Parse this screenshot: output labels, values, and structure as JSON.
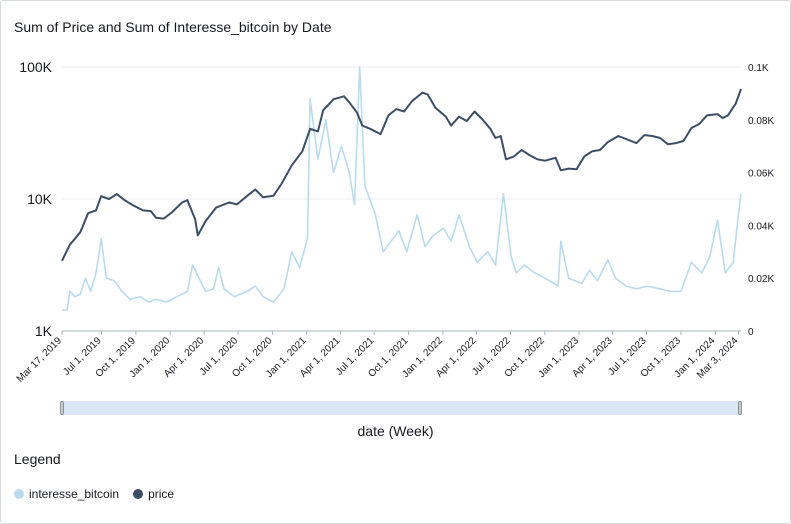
{
  "title": "Sum of Price and Sum of Interesse_bitcoin by Date",
  "xaxis_title": "date (Week)",
  "legend": {
    "title": "Legend",
    "items": [
      {
        "label": "interesse_bitcoin",
        "color": "#b9dbee"
      },
      {
        "label": "price",
        "color": "#3b4e66"
      }
    ]
  },
  "chart_data": {
    "type": "line",
    "x_range": [
      "2019-03-17",
      "2024-03-10"
    ],
    "x_ticks": [
      "Mar 17, 2019",
      "Jul 1, 2019",
      "Oct 1, 2019",
      "Jan 1, 2020",
      "Apr 1, 2020",
      "Jul 1, 2020",
      "Oct 1, 2020",
      "Jan 1, 2021",
      "Apr 1, 2021",
      "Jul 1, 2021",
      "Oct 1, 2021",
      "Jan 1, 2022",
      "Apr 1, 2022",
      "Jul 1, 2022",
      "Oct 1, 2022",
      "Jan 1, 2023",
      "Apr 1, 2023",
      "Jul 1, 2023",
      "Oct 1, 2023",
      "Jan 1, 2024",
      "Mar 3, 2024"
    ],
    "y_left": {
      "scale": "log",
      "range": [
        1000,
        100000
      ],
      "ticks": [
        "1K",
        "10K",
        "100K"
      ]
    },
    "y_right": {
      "scale": "linear",
      "range": [
        0,
        100
      ],
      "ticks": [
        "0",
        "0.02K",
        "0.04K",
        "0.06K",
        "0.08K",
        "0.1K"
      ]
    },
    "grid": true,
    "legend_position": "bottom-left",
    "series": [
      {
        "name": "price",
        "axis": "left",
        "color": "#3b4e66",
        "points": [
          [
            "2019-03-17",
            3400
          ],
          [
            "2019-04-07",
            4500
          ],
          [
            "2019-05-05",
            5600
          ],
          [
            "2019-05-26",
            7800
          ],
          [
            "2019-06-16",
            8200
          ],
          [
            "2019-06-30",
            10500
          ],
          [
            "2019-07-21",
            10000
          ],
          [
            "2019-08-11",
            10900
          ],
          [
            "2019-09-01",
            9800
          ],
          [
            "2019-09-22",
            9000
          ],
          [
            "2019-10-20",
            8200
          ],
          [
            "2019-11-10",
            8100
          ],
          [
            "2019-11-24",
            7200
          ],
          [
            "2019-12-15",
            7100
          ],
          [
            "2020-01-05",
            7900
          ],
          [
            "2020-02-02",
            9400
          ],
          [
            "2020-02-16",
            9800
          ],
          [
            "2020-03-08",
            7000
          ],
          [
            "2020-03-15",
            5300
          ],
          [
            "2020-04-05",
            6800
          ],
          [
            "2020-05-03",
            8600
          ],
          [
            "2020-06-07",
            9400
          ],
          [
            "2020-06-28",
            9100
          ],
          [
            "2020-07-26",
            10600
          ],
          [
            "2020-08-16",
            11800
          ],
          [
            "2020-09-06",
            10300
          ],
          [
            "2020-10-04",
            10600
          ],
          [
            "2020-10-25",
            13000
          ],
          [
            "2020-11-22",
            18000
          ],
          [
            "2020-12-20",
            23000
          ],
          [
            "2021-01-10",
            34000
          ],
          [
            "2021-01-31",
            32500
          ],
          [
            "2021-02-14",
            47000
          ],
          [
            "2021-03-14",
            57000
          ],
          [
            "2021-04-11",
            60000
          ],
          [
            "2021-04-25",
            54000
          ],
          [
            "2021-05-16",
            45000
          ],
          [
            "2021-05-30",
            36000
          ],
          [
            "2021-06-20",
            34000
          ],
          [
            "2021-07-18",
            31000
          ],
          [
            "2021-08-08",
            43000
          ],
          [
            "2021-08-29",
            48000
          ],
          [
            "2021-09-19",
            46000
          ],
          [
            "2021-10-10",
            55000
          ],
          [
            "2021-11-07",
            64000
          ],
          [
            "2021-11-21",
            62000
          ],
          [
            "2021-12-12",
            49000
          ],
          [
            "2022-01-09",
            42000
          ],
          [
            "2022-01-23",
            36000
          ],
          [
            "2022-02-13",
            42000
          ],
          [
            "2022-03-06",
            39000
          ],
          [
            "2022-03-27",
            46000
          ],
          [
            "2022-04-17",
            40000
          ],
          [
            "2022-05-08",
            34000
          ],
          [
            "2022-05-22",
            29000
          ],
          [
            "2022-06-05",
            30000
          ],
          [
            "2022-06-19",
            20000
          ],
          [
            "2022-07-10",
            21000
          ],
          [
            "2022-07-31",
            23500
          ],
          [
            "2022-08-21",
            21500
          ],
          [
            "2022-09-11",
            20000
          ],
          [
            "2022-10-02",
            19500
          ],
          [
            "2022-10-30",
            20500
          ],
          [
            "2022-11-13",
            16500
          ],
          [
            "2022-12-04",
            17000
          ],
          [
            "2022-12-25",
            16800
          ],
          [
            "2023-01-15",
            21000
          ],
          [
            "2023-02-05",
            23000
          ],
          [
            "2023-02-26",
            23500
          ],
          [
            "2023-03-19",
            27000
          ],
          [
            "2023-04-16",
            30000
          ],
          [
            "2023-05-07",
            28500
          ],
          [
            "2023-06-04",
            26500
          ],
          [
            "2023-06-25",
            30500
          ],
          [
            "2023-07-16",
            30000
          ],
          [
            "2023-08-06",
            29000
          ],
          [
            "2023-08-27",
            26000
          ],
          [
            "2023-09-17",
            26500
          ],
          [
            "2023-10-08",
            27500
          ],
          [
            "2023-10-29",
            34500
          ],
          [
            "2023-11-19",
            37000
          ],
          [
            "2023-12-10",
            43000
          ],
          [
            "2024-01-07",
            44000
          ],
          [
            "2024-01-21",
            41000
          ],
          [
            "2024-02-04",
            43000
          ],
          [
            "2024-02-25",
            53000
          ],
          [
            "2024-03-10",
            68000
          ]
        ]
      },
      {
        "name": "interesse_bitcoin",
        "axis": "right",
        "color": "#b9dbee",
        "points": [
          [
            "2019-03-17",
            8
          ],
          [
            "2019-03-31",
            8
          ],
          [
            "2019-04-07",
            15
          ],
          [
            "2019-04-21",
            13
          ],
          [
            "2019-05-05",
            14
          ],
          [
            "2019-05-19",
            20
          ],
          [
            "2019-06-02",
            15
          ],
          [
            "2019-06-16",
            22
          ],
          [
            "2019-06-30",
            35
          ],
          [
            "2019-07-14",
            20
          ],
          [
            "2019-08-04",
            19
          ],
          [
            "2019-08-25",
            15
          ],
          [
            "2019-09-15",
            12
          ],
          [
            "2019-10-13",
            13
          ],
          [
            "2019-11-03",
            11
          ],
          [
            "2019-11-24",
            12
          ],
          [
            "2019-12-22",
            11
          ],
          [
            "2020-01-19",
            13
          ],
          [
            "2020-02-16",
            15
          ],
          [
            "2020-03-01",
            25
          ],
          [
            "2020-03-15",
            21
          ],
          [
            "2020-04-05",
            15
          ],
          [
            "2020-04-26",
            16
          ],
          [
            "2020-05-10",
            24
          ],
          [
            "2020-05-24",
            16
          ],
          [
            "2020-06-21",
            13
          ],
          [
            "2020-07-26",
            15
          ],
          [
            "2020-08-16",
            17
          ],
          [
            "2020-09-06",
            13
          ],
          [
            "2020-10-04",
            11
          ],
          [
            "2020-11-01",
            16
          ],
          [
            "2020-11-22",
            30
          ],
          [
            "2020-12-13",
            24
          ],
          [
            "2021-01-03",
            35
          ],
          [
            "2021-01-10",
            88
          ],
          [
            "2021-01-31",
            65
          ],
          [
            "2021-02-21",
            80
          ],
          [
            "2021-03-14",
            60
          ],
          [
            "2021-04-04",
            70
          ],
          [
            "2021-04-25",
            60
          ],
          [
            "2021-05-09",
            48
          ],
          [
            "2021-05-23",
            100
          ],
          [
            "2021-06-06",
            55
          ],
          [
            "2021-07-04",
            44
          ],
          [
            "2021-07-25",
            30
          ],
          [
            "2021-08-15",
            34
          ],
          [
            "2021-09-05",
            38
          ],
          [
            "2021-09-26",
            30
          ],
          [
            "2021-10-24",
            44
          ],
          [
            "2021-11-14",
            32
          ],
          [
            "2021-12-05",
            36
          ],
          [
            "2022-01-02",
            39
          ],
          [
            "2022-01-23",
            34
          ],
          [
            "2022-02-13",
            44
          ],
          [
            "2022-03-13",
            32
          ],
          [
            "2022-04-03",
            26
          ],
          [
            "2022-05-01",
            30
          ],
          [
            "2022-05-22",
            25
          ],
          [
            "2022-06-12",
            52
          ],
          [
            "2022-07-03",
            28
          ],
          [
            "2022-07-17",
            22
          ],
          [
            "2022-08-07",
            25
          ],
          [
            "2022-09-04",
            22
          ],
          [
            "2022-10-02",
            20
          ],
          [
            "2022-11-06",
            17
          ],
          [
            "2022-11-13",
            34
          ],
          [
            "2022-12-04",
            20
          ],
          [
            "2023-01-08",
            18
          ],
          [
            "2023-01-29",
            23
          ],
          [
            "2023-02-19",
            19
          ],
          [
            "2023-03-19",
            27
          ],
          [
            "2023-04-09",
            20
          ],
          [
            "2023-05-07",
            17
          ],
          [
            "2023-06-04",
            16
          ],
          [
            "2023-07-02",
            17
          ],
          [
            "2023-08-06",
            16
          ],
          [
            "2023-09-03",
            15
          ],
          [
            "2023-10-01",
            15
          ],
          [
            "2023-10-29",
            26
          ],
          [
            "2023-11-26",
            22
          ],
          [
            "2023-12-17",
            28
          ],
          [
            "2024-01-07",
            42
          ],
          [
            "2024-01-28",
            22
          ],
          [
            "2024-02-18",
            26
          ],
          [
            "2024-03-03",
            44
          ],
          [
            "2024-03-10",
            52
          ]
        ]
      }
    ]
  }
}
